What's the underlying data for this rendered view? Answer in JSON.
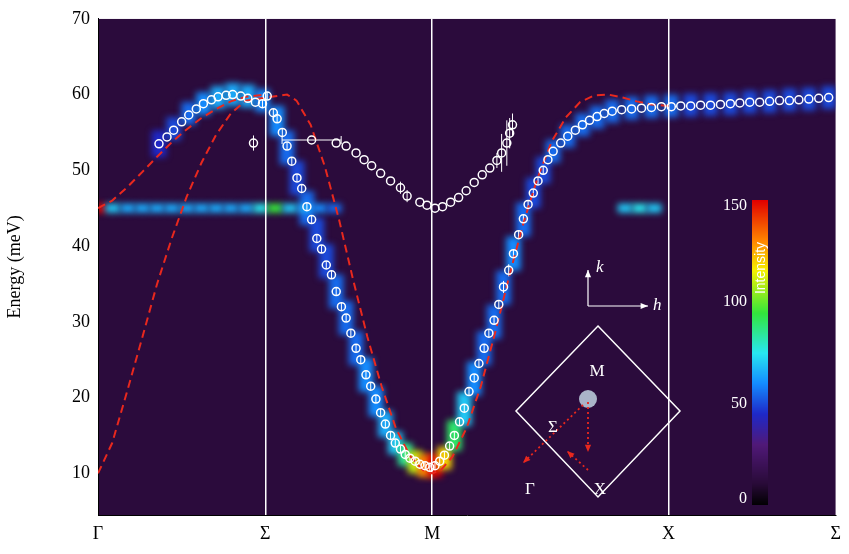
{
  "chart_data": {
    "type": "scatter",
    "ylabel": "Energy (meV)",
    "xlim": [
      0,
      1.561
    ],
    "xticks": [
      {
        "value": 0,
        "label": "Γ"
      },
      {
        "value": 0.354,
        "label": "Σ"
      },
      {
        "value": 0.707,
        "label": "M"
      },
      {
        "value": 1.207,
        "label": "X"
      },
      {
        "value": 1.561,
        "label": "Σ"
      }
    ],
    "ylim": [
      4.5,
      70
    ],
    "yticks": [
      10,
      20,
      30,
      40,
      50,
      60,
      70
    ],
    "grid": "x",
    "series": [
      {
        "type": "scatter",
        "color": "#ffffff",
        "marker": "open_circle",
        "line_style": "none",
        "x": [
          0.129,
          0.146,
          0.16,
          0.177,
          0.192,
          0.208,
          0.223,
          0.24,
          0.254,
          0.271,
          0.285,
          0.302,
          0.317,
          0.333,
          0.348,
          0.358,
          0.371,
          0.379,
          0.39,
          0.4,
          0.41,
          0.421,
          0.431,
          0.442,
          0.452,
          0.463,
          0.473,
          0.483,
          0.494,
          0.504,
          0.515,
          0.525,
          0.535,
          0.546,
          0.556,
          0.567,
          0.577,
          0.588,
          0.598,
          0.608,
          0.619,
          0.629,
          0.64,
          0.65,
          0.66,
          0.671,
          0.681,
          0.692,
          0.702,
          0.713,
          0.723,
          0.733,
          0.744,
          0.754,
          0.765,
          0.775,
          0.785,
          0.796,
          0.806,
          0.817,
          0.827,
          0.838,
          0.848,
          0.858,
          0.869,
          0.879,
          0.89,
          0.9,
          0.91,
          0.921,
          0.931,
          0.942,
          0.952,
          0.963,
          0.979,
          0.994,
          1.01,
          1.025,
          1.04,
          1.056,
          1.071,
          1.088,
          1.108,
          1.129,
          1.15,
          1.171,
          1.192,
          1.213,
          1.233,
          1.254,
          1.275,
          1.296,
          1.317,
          1.338,
          1.358,
          1.379,
          1.4,
          1.421,
          1.442,
          1.463,
          1.483,
          1.504,
          1.525,
          1.546
        ],
        "values": [
          53.5,
          54.4,
          55.3,
          56.4,
          57.3,
          58.1,
          58.8,
          59.3,
          59.7,
          59.9,
          60.0,
          59.8,
          59.5,
          59.0,
          58.8,
          59.8,
          57.6,
          56.8,
          55.0,
          53.2,
          51.2,
          49.0,
          47.6,
          45.2,
          43.5,
          41.0,
          39.6,
          37.5,
          36.2,
          34.0,
          32.0,
          30.5,
          28.5,
          26.5,
          25.0,
          23.0,
          21.5,
          19.8,
          18.0,
          16.5,
          15.0,
          14.0,
          13.2,
          12.5,
          12.0,
          11.6,
          11.2,
          11.0,
          10.8,
          11.0,
          11.6,
          12.4,
          13.6,
          15.0,
          16.8,
          18.6,
          20.8,
          22.6,
          24.5,
          26.5,
          28.5,
          30.2,
          32.3,
          34.6,
          36.8,
          39.0,
          41.5,
          43.6,
          45.5,
          47.0,
          48.6,
          50.0,
          51.4,
          52.5,
          53.6,
          54.5,
          55.3,
          56.0,
          56.6,
          57.1,
          57.5,
          57.8,
          58.0,
          58.1,
          58.2,
          58.3,
          58.4,
          58.4,
          58.5,
          58.5,
          58.6,
          58.6,
          58.7,
          58.8,
          58.9,
          59.0,
          59.0,
          59.1,
          59.2,
          59.2,
          59.3,
          59.4,
          59.5,
          59.6
        ],
        "yerr": [
          0,
          0,
          0,
          0,
          0,
          0,
          0,
          0,
          0,
          0,
          0,
          0,
          0,
          0,
          0.5,
          0.5,
          0.5,
          0.5,
          0.5,
          0.5,
          0.5,
          0.5,
          0.5,
          0.5,
          0.5,
          0.5,
          0.5,
          0.5,
          0.5,
          0.5,
          0.5,
          0.5,
          0.5,
          0.5,
          0.5,
          0.5,
          0.5,
          0.5,
          0.5,
          0.5,
          0.5,
          0.5,
          0.5,
          0.5,
          0.5,
          0.5,
          0.5,
          0.5,
          0.5,
          0.5,
          0.5,
          0.5,
          0.5,
          0.5,
          0.5,
          0.5,
          0.5,
          0.5,
          0.5,
          0.5,
          0.5,
          0.5,
          0.5,
          0.8,
          0.8,
          0.5,
          0.5,
          0.5,
          0.5,
          0.5,
          0.5,
          0.5,
          0,
          0,
          0,
          0,
          0,
          0,
          0,
          0,
          0,
          0,
          0,
          0,
          0,
          0,
          0,
          0,
          0,
          0,
          0,
          0,
          0,
          0,
          0,
          0,
          0,
          0,
          0,
          0,
          0,
          0,
          0,
          0
        ]
      },
      {
        "type": "scatter",
        "color": "#ffffff",
        "marker": "open_circle",
        "line_style": "none",
        "x": [
          0.329,
          0.452,
          0.504,
          0.525,
          0.546,
          0.563,
          0.579,
          0.598,
          0.619,
          0.64,
          0.654,
          0.681,
          0.696,
          0.713,
          0.729,
          0.746,
          0.763,
          0.779,
          0.796,
          0.813,
          0.829,
          0.844,
          0.854,
          0.865,
          0.871,
          0.877
        ],
        "values": [
          53.6,
          54.0,
          53.6,
          53.2,
          52.3,
          51.4,
          50.6,
          49.6,
          48.6,
          47.7,
          46.6,
          45.8,
          45.4,
          45.0,
          45.2,
          45.8,
          46.4,
          47.3,
          48.4,
          49.4,
          50.3,
          51.3,
          52.3,
          53.6,
          54.9,
          56.0
        ],
        "yerr": [
          1,
          0,
          0,
          0,
          0,
          0,
          0,
          0,
          0,
          0.8,
          0.8,
          0,
          0,
          0,
          0,
          0,
          0,
          0,
          0,
          0,
          0,
          1,
          2.5,
          3,
          2,
          1.5
        ],
        "xerr": [
          0,
          0.0625,
          0,
          0,
          0,
          0,
          0,
          0,
          0,
          0,
          0,
          0,
          0,
          0,
          0,
          0,
          0,
          0,
          0,
          0,
          0,
          0,
          0,
          0,
          0,
          0
        ]
      },
      {
        "type": "line",
        "color": "#e8281e",
        "marker": "none",
        "line_style": "dashed",
        "x": [
          0,
          0.03,
          0.0625,
          0.094,
          0.125,
          0.156,
          0.1875,
          0.219,
          0.25,
          0.281,
          0.3125,
          0.354,
          0.4,
          0.42,
          0.45,
          0.48,
          0.51,
          0.54,
          0.57,
          0.6,
          0.63,
          0.66,
          0.69,
          0.707,
          0.725,
          0.75,
          0.78,
          0.81,
          0.84,
          0.87,
          0.9,
          0.93,
          0.96,
          0.99,
          1.02,
          1.05,
          1.08,
          1.11,
          1.14,
          1.17,
          1.207
        ],
        "values": [
          10,
          14,
          21,
          28,
          35,
          41,
          46.5,
          51,
          54.7,
          57.5,
          59.2,
          59.6,
          60,
          59.2,
          56,
          50.5,
          43.5,
          35.5,
          28,
          21.5,
          16,
          12.3,
          10.3,
          10,
          10.4,
          12.2,
          16,
          21.5,
          28.5,
          36,
          43,
          49,
          53.8,
          57,
          59,
          59.9,
          60,
          59.6,
          59.1,
          58.7,
          58.5
        ]
      },
      {
        "type": "line",
        "color": "#e8281e",
        "marker": "none",
        "line_style": "dashed",
        "x": [
          0,
          0.03,
          0.0625,
          0.094,
          0.125,
          0.156,
          0.1875,
          0.219,
          0.25,
          0.281,
          0.3125,
          0.354
        ],
        "values": [
          45,
          46,
          47.8,
          49.8,
          51.8,
          53.7,
          55.4,
          56.9,
          58.1,
          59.1,
          59.7,
          60
        ]
      }
    ],
    "heatmap": {
      "dx": 0.031,
      "x": [
        0.129,
        0.16,
        0.192,
        0.223,
        0.254,
        0.285,
        0.317,
        0.348,
        0.379,
        0.4,
        0.421,
        0.442,
        0.463,
        0.483,
        0.504,
        0.525,
        0.546,
        0.567,
        0.588,
        0.608,
        0.629,
        0.65,
        0.671,
        0.692,
        0.713,
        0.733,
        0.754,
        0.775,
        0.796,
        0.817,
        0.838,
        0.858,
        0.879,
        0.9,
        0.921,
        0.942,
        0.963,
        0.994,
        1.025,
        1.056,
        1.088,
        1.129,
        1.171,
        1.213,
        1.254,
        1.296,
        1.338,
        1.379,
        1.421,
        1.463,
        1.504,
        1.546,
        0,
        0.031,
        0.063,
        0.094,
        0.125,
        0.156,
        0.188,
        0.219,
        0.25,
        0.281,
        0.313,
        0.344,
        0.375,
        0.406,
        0.438,
        0.469,
        0.5,
        1.115,
        1.146,
        1.177
      ],
      "y": [
        53.5,
        55.5,
        57.5,
        58.8,
        59.6,
        60.0,
        59.8,
        59.2,
        56.5,
        53.0,
        49.0,
        45.0,
        41.5,
        38.0,
        34.0,
        30.5,
        26.5,
        23.0,
        19.5,
        16.5,
        14.0,
        12.5,
        11.5,
        11.0,
        11.0,
        12.0,
        15.0,
        18.5,
        22.5,
        26.5,
        30.0,
        34.5,
        39.0,
        43.5,
        47.0,
        50.0,
        52.5,
        54.5,
        56.0,
        57.0,
        57.8,
        58.2,
        58.4,
        58.5,
        58.6,
        58.7,
        58.8,
        59.0,
        59.1,
        59.3,
        59.4,
        59.6,
        45,
        45,
        45,
        45,
        45,
        45,
        45,
        45,
        45,
        45,
        45,
        45,
        45,
        45,
        45,
        45,
        45,
        45,
        45,
        45
      ],
      "dy": [
        3.5,
        3,
        3,
        3,
        3,
        3,
        3,
        3,
        4,
        4.5,
        4.5,
        4.5,
        4.5,
        4.5,
        4.5,
        4.5,
        4.5,
        4.5,
        4,
        3.5,
        3,
        3,
        3,
        3,
        3,
        3,
        4,
        4.5,
        4.5,
        4.5,
        4.5,
        4.5,
        4.5,
        4.5,
        4,
        3.5,
        3,
        3,
        3,
        3,
        3,
        3,
        3,
        3,
        3,
        3,
        3,
        3,
        3,
        3,
        3,
        3,
        1.2,
        1.2,
        1.2,
        1.2,
        1.2,
        1.2,
        1.2,
        1.2,
        1.2,
        1.2,
        1.2,
        1.2,
        1.2,
        1.2,
        1.2,
        1.2,
        1.2,
        1.2,
        1.2,
        1.2
      ],
      "intensity": [
        45,
        50,
        55,
        60,
        65,
        65,
        65,
        60,
        60,
        55,
        50,
        55,
        50,
        50,
        55,
        55,
        55,
        60,
        60,
        65,
        70,
        85,
        110,
        130,
        150,
        120,
        90,
        70,
        60,
        55,
        55,
        55,
        60,
        55,
        50,
        50,
        55,
        55,
        55,
        55,
        55,
        55,
        55,
        55,
        50,
        50,
        50,
        50,
        50,
        50,
        50,
        50,
        150,
        70,
        65,
        65,
        65,
        65,
        65,
        65,
        65,
        65,
        65,
        75,
        95,
        70,
        65,
        60,
        55,
        70,
        75,
        70
      ],
      "background": 12,
      "color_range": [
        0,
        150
      ],
      "color_ticks": [
        0,
        50,
        100,
        150
      ],
      "color_label": "Intensity"
    },
    "inset": {
      "points": [
        "M",
        "Σ",
        "Γ",
        "X"
      ],
      "axes": [
        "k",
        "h"
      ]
    }
  }
}
